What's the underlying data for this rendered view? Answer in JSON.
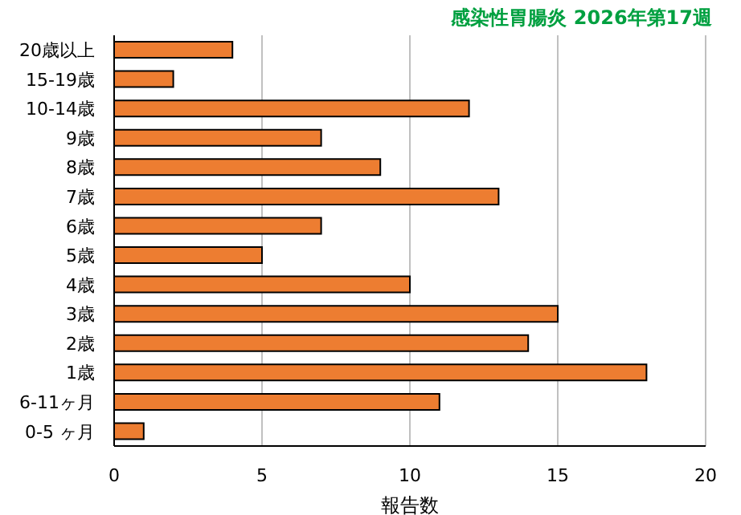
{
  "chart_data": {
    "type": "bar",
    "orientation": "horizontal",
    "title": "感染性胃腸炎 2026年第17週",
    "xlabel": "報告数",
    "categories": [
      "20歳以上",
      "15-19歳",
      "10-14歳",
      "9歳",
      "8歳",
      "7歳",
      "6歳",
      "5歳",
      "4歳",
      "3歳",
      "2歳",
      "1歳",
      "6-11ヶ月",
      "0-5 ヶ月"
    ],
    "values": [
      4,
      2,
      12,
      7,
      9,
      13,
      7,
      5,
      10,
      15,
      14,
      18,
      11,
      1
    ],
    "color": "#ed7d31",
    "xlim": [
      0,
      20
    ],
    "xticks": [
      0,
      5,
      10,
      15,
      20
    ],
    "grid": "x"
  }
}
